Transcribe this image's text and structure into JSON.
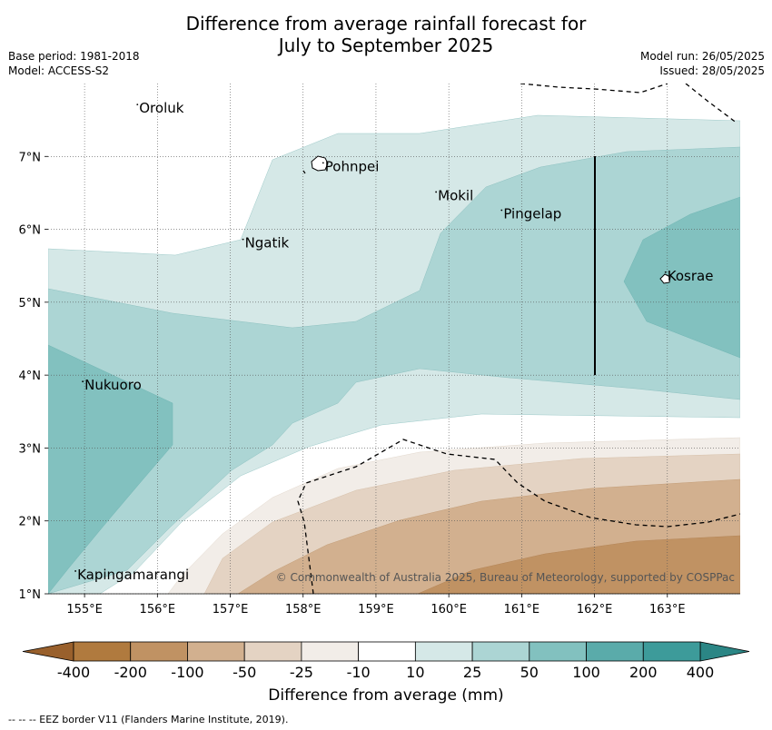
{
  "title_line1": "Difference from average rainfall forecast for",
  "title_line2": "July to September 2025",
  "meta_left": [
    "Base period: 1981-2018",
    "Model: ACCESS-S2"
  ],
  "meta_right": [
    "Model run: 26/05/2025",
    "Issued: 28/05/2025"
  ],
  "copyright": "© Commonwealth of Australia 2025, Bureau of Meteorology, supported by COSPPac",
  "map": {
    "lon_range": [
      154.5,
      164.0
    ],
    "lat_range": [
      1.0,
      8.0
    ],
    "lon_ticks": [
      155,
      156,
      157,
      158,
      159,
      160,
      161,
      162,
      163
    ],
    "lat_ticks": [
      1,
      2,
      3,
      4,
      5,
      6,
      7
    ],
    "lon_tick_labels": [
      "155°E",
      "156°E",
      "157°E",
      "158°E",
      "159°E",
      "160°E",
      "161°E",
      "162°E",
      "163°E"
    ],
    "lat_tick_labels": [
      "1°N",
      "2°N",
      "3°N",
      "4°N",
      "5°N",
      "6°N",
      "7°N"
    ],
    "places": [
      {
        "name": "Oroluk",
        "lon": 155.75,
        "lat": 7.6
      },
      {
        "name": "Pohnpei",
        "lon": 158.3,
        "lat": 6.8
      },
      {
        "name": "Mokil",
        "lon": 159.85,
        "lat": 6.4
      },
      {
        "name": "Pingelap",
        "lon": 160.75,
        "lat": 6.15
      },
      {
        "name": "Ngatik",
        "lon": 157.2,
        "lat": 5.75
      },
      {
        "name": "Kosrae",
        "lon": 163.0,
        "lat": 5.3
      },
      {
        "name": "Nukuoro",
        "lon": 155.0,
        "lat": 3.8
      },
      {
        "name": "Kapingamarangi",
        "lon": 154.9,
        "lat": 1.2
      }
    ]
  },
  "colorbar": {
    "labels": [
      "-400",
      "-200",
      "-100",
      "-50",
      "-25",
      "-10",
      "10",
      "25",
      "50",
      "100",
      "200",
      "400"
    ],
    "colors": [
      "#b07a3e",
      "#c09263",
      "#d2b08f",
      "#e4d3c3",
      "#f2ede8",
      "#ffffff",
      "#d5e8e7",
      "#acd5d4",
      "#82c1bf",
      "#5aabaa",
      "#3d9b9a"
    ],
    "under_color": "#99602c",
    "over_color": "#2b8685",
    "label": "Difference from average (mm)"
  },
  "footnote": "--  --  -- EEZ border V11 (Flanders Marine Institute, 2019)."
}
